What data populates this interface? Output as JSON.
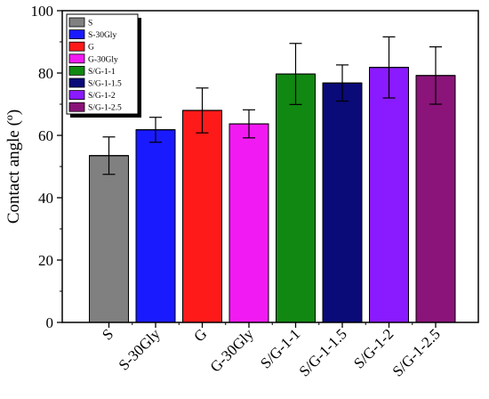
{
  "chart_data": {
    "type": "bar",
    "title": "",
    "xlabel": "",
    "ylabel": "Contact angle (º)",
    "ylim": [
      0,
      100
    ],
    "yticks": [
      "0",
      "20",
      "40",
      "60",
      "80",
      "100"
    ],
    "grid": false,
    "legend_position": "top-left",
    "categories": [
      "S",
      "S-30Gly",
      "G",
      "G-30Gly",
      "S/G-1-1",
      "S/G-1-1.5",
      "S/G-1-2",
      "S/G-1-2.5"
    ],
    "legend_labels": [
      "S",
      "S-30Gly",
      "G",
      "G-30Gly",
      "S/G-1-1",
      "S/G-1-1.5",
      "S/G-1-2",
      "S/G-1-2.5"
    ],
    "values": [
      53.5,
      61.8,
      68.0,
      63.7,
      79.7,
      76.8,
      81.8,
      79.2
    ],
    "errors": [
      6.0,
      4.0,
      7.2,
      4.5,
      9.8,
      5.8,
      9.8,
      9.2
    ],
    "colors": [
      "#808080",
      "#1a1aff",
      "#ff1a1a",
      "#f21af2",
      "#118811",
      "#0a0a78",
      "#8a1aff",
      "#8a1479"
    ]
  }
}
